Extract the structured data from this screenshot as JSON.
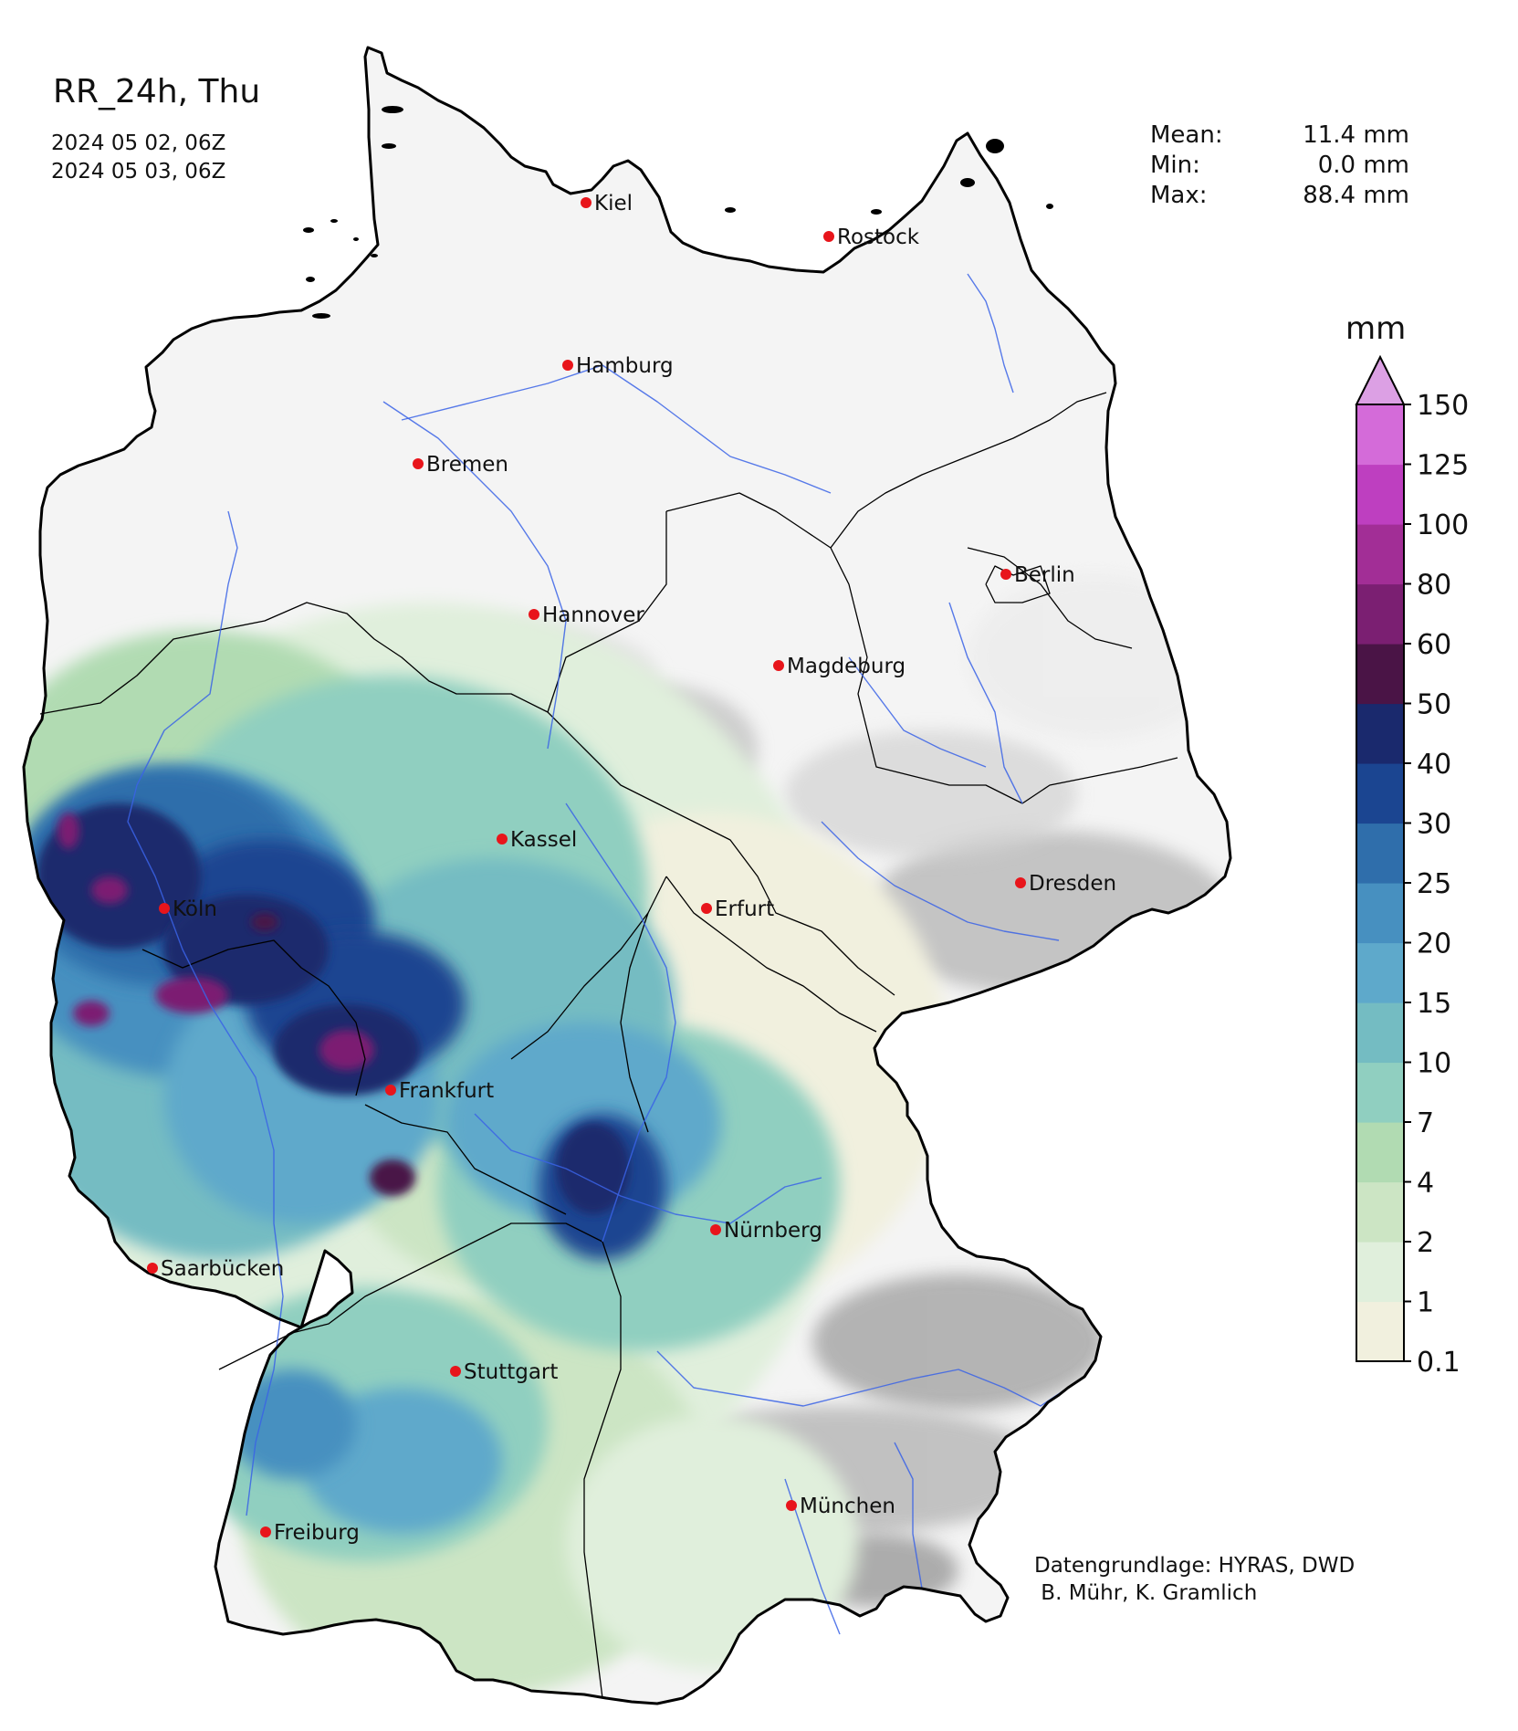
{
  "header": {
    "title": "RR_24h, Thu",
    "period_start": "2024 05 02, 06Z",
    "period_end": "2024 05 03, 06Z"
  },
  "stats": [
    {
      "label": "Mean:",
      "value": "11.4 mm"
    },
    {
      "label": "Min:",
      "value": "0.0 mm"
    },
    {
      "label": "Max:",
      "value": "88.4 mm"
    }
  ],
  "colorbar": {
    "unit": "mm",
    "levels": [
      "0.1",
      "1",
      "2",
      "4",
      "7",
      "10",
      "15",
      "20",
      "25",
      "30",
      "40",
      "50",
      "60",
      "80",
      "100",
      "125",
      "150"
    ],
    "colors": [
      "#f1f0de",
      "#e0efdc",
      "#cce5c4",
      "#b1dbb2",
      "#90cfc0",
      "#74bcc2",
      "#5ea9cb",
      "#4790c0",
      "#2f6eab",
      "#1b4591",
      "#1a296d",
      "#4a1446",
      "#7b1f72",
      "#a22e96",
      "#be3fc0",
      "#d46bd9"
    ],
    "extend_color": "#dca0e4"
  },
  "map": {
    "cities": [
      {
        "name": "Kiel"
      },
      {
        "name": "Rostock"
      },
      {
        "name": "Hamburg"
      },
      {
        "name": "Bremen"
      },
      {
        "name": "Berlin"
      },
      {
        "name": "Hannover"
      },
      {
        "name": "Magdeburg"
      },
      {
        "name": "Kassel"
      },
      {
        "name": "Köln"
      },
      {
        "name": "Erfurt"
      },
      {
        "name": "Dresden"
      },
      {
        "name": "Frankfurt"
      },
      {
        "name": "Nürnberg"
      },
      {
        "name": "Saarbücken"
      },
      {
        "name": "Stuttgart"
      },
      {
        "name": "München"
      },
      {
        "name": "Freiburg"
      }
    ],
    "city_marker_color": "#e8151b",
    "river_color": "#3a63e6",
    "dry_color": "#f4f4f4",
    "terrain_gray": "#9c9c9c"
  },
  "credits": "Datengrundlage: HYRAS, DWD\n B. Mühr, K. Gramlich"
}
